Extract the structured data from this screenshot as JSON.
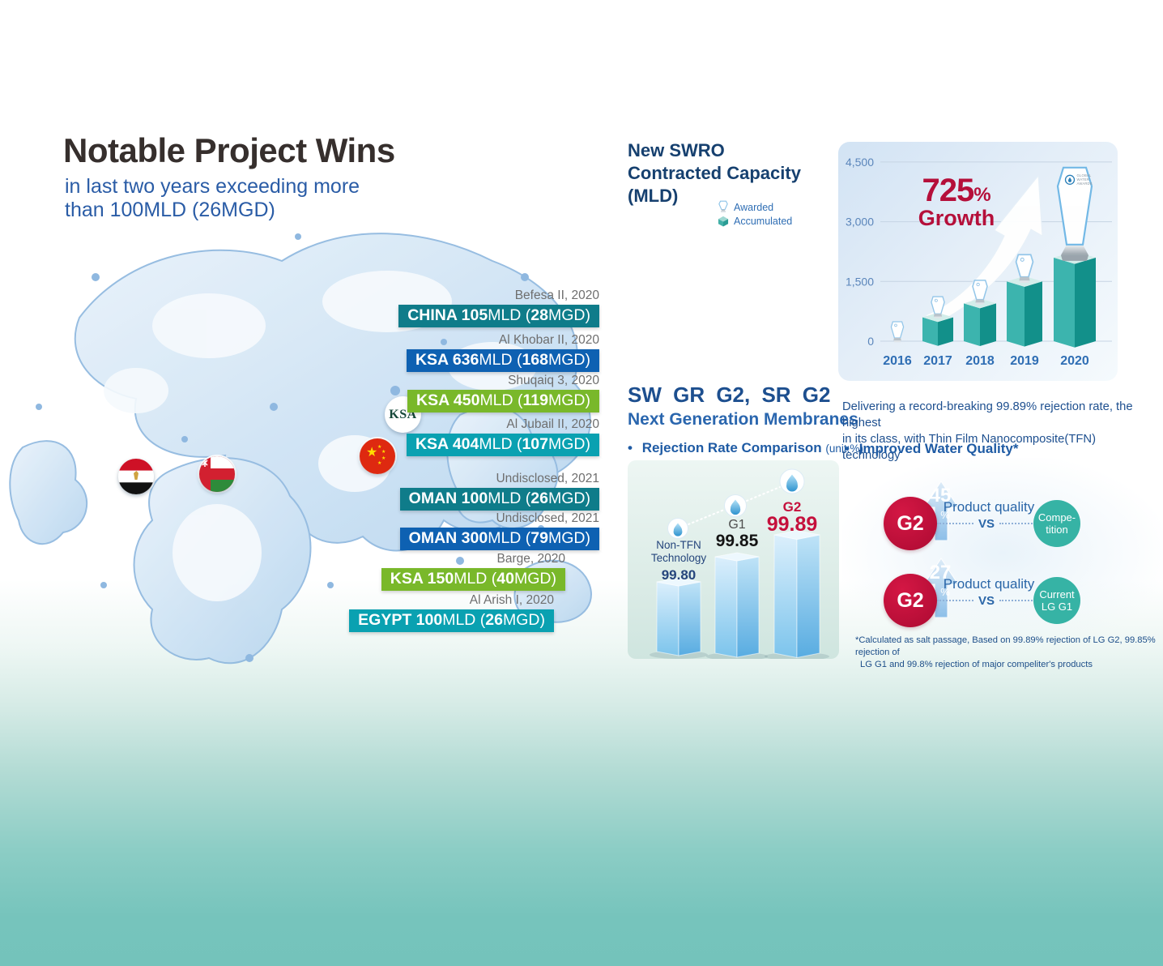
{
  "colors": {
    "teal_bar": "#0f7c8a",
    "blue_bar": "#0e61b2",
    "green_bar": "#79b82a",
    "cyan_bar": "#0aa1b1",
    "navy_heading": "#16406f",
    "blue_heading": "#2a66ae",
    "body_blue": "#1d4f8f",
    "red_accent": "#b50f3a",
    "crimson_circle": "#c5103c",
    "teal_circle": "#36b3a5",
    "chart_bar_teal": "#2fa8a2",
    "page_bottom_teal": "#74c3bb"
  },
  "left": {
    "title": "Notable Project Wins",
    "subtitle_line1": "in last two years exceeding more",
    "subtitle_line2": "than 100MLD (26MGD)",
    "ksa_badge_label": "KSA",
    "projects": [
      {
        "date": "Befesa II, 2020",
        "strong_a": "CHINA 105",
        "plain_a": "MLD (",
        "strong_b": "28",
        "plain_b": "MGD)",
        "color": "#0f7c8a"
      },
      {
        "date": "Al Khobar II, 2020",
        "strong_a": "KSA 636",
        "plain_a": "MLD (",
        "strong_b": "168",
        "plain_b": "MGD)",
        "color": "#0e61b2"
      },
      {
        "date": "Shuqaiq 3, 2020",
        "strong_a": "KSA 450",
        "plain_a": "MLD (",
        "strong_b": "119",
        "plain_b": "MGD)",
        "color": "#79b82a"
      },
      {
        "date": "Al Jubail II, 2020",
        "strong_a": "KSA 404",
        "plain_a": "MLD (",
        "strong_b": "107",
        "plain_b": "MGD)",
        "color": "#0aa1b1"
      },
      {
        "date": "Undisclosed, 2021",
        "strong_a": "OMAN 100",
        "plain_a": "MLD (",
        "strong_b": "26",
        "plain_b": "MGD)",
        "color": "#0f7c8a"
      },
      {
        "date": "Undisclosed, 2021",
        "strong_a": "OMAN 300",
        "plain_a": "MLD (",
        "strong_b": "79",
        "plain_b": "MGD)",
        "color": "#0e61b2"
      },
      {
        "date": "Barge, 2020",
        "strong_a": "KSA 150",
        "plain_a": "MLD (",
        "strong_b": "40",
        "plain_b": "MGD)",
        "color": "#79b82a"
      },
      {
        "date": "Al Arish I, 2020",
        "strong_a": "EGYPT 100",
        "plain_a": "MLD (",
        "strong_b": "26",
        "plain_b": "MGD)",
        "color": "#0aa1b1"
      }
    ]
  },
  "capacity": {
    "heading_line1": "New SWRO",
    "heading_line2": "Contracted Capacity",
    "heading_line3": "(MLD)",
    "legend_awarded": "Awarded",
    "legend_accumulated": "Accumulated",
    "growth_value": "725",
    "growth_unit": "%",
    "growth_label": "Growth",
    "award_lines": [
      "GLOBAL",
      "WATER",
      "AWARDS"
    ]
  },
  "membranes": {
    "heading": "SW GR G2, SR G2",
    "subheading": "Next Generation Membranes",
    "bullet_left": "Rejection Rate Comparison",
    "bullet_left_unit": "(unit:%)",
    "desc_line1": "Delivering a record-breaking 99.89% rejection rate, the highest",
    "desc_line2": "in its class, with Thin Film Nanocomposite(TFN) technology",
    "bullet_right": "Improved Water Quality*",
    "rejection_labels": {
      "bar1_line1": "Non-TFN",
      "bar1_line2": "Technology",
      "bar1_value": "99.80",
      "bar2_label": "G1",
      "bar2_value": "99.85",
      "bar3_label": "G2",
      "bar3_value": "99.89"
    },
    "quality_rows": [
      {
        "circle": "G2",
        "percent": "45",
        "percent_sign": "%",
        "quality_label": "Product quality",
        "vs": "VS",
        "opponent_line1": "Compe-",
        "opponent_line2": "tition"
      },
      {
        "circle": "G2",
        "percent": "27",
        "percent_sign": "%",
        "quality_label": "Product quality",
        "vs": "VS",
        "opponent_line1": "Current",
        "opponent_line2": "LG G1"
      }
    ],
    "footnote_line1": "*Calculated as salt passage, Based on 99.89% rejection of LG G2, 99.85% rejection of",
    "footnote_line2": "LG G1 and 99.8% rejection of major compeliter's products"
  },
  "chart_data": [
    {
      "type": "bar",
      "title": "New SWRO Contracted Capacity (MLD)",
      "categories": [
        "2016",
        "2017",
        "2018",
        "2019",
        "2020"
      ],
      "values": [
        0,
        600,
        950,
        1500,
        2100
      ],
      "ylim": [
        0,
        4500
      ],
      "ytick_values": [
        4500,
        3000,
        1500,
        0
      ],
      "ytick_labels": [
        "4,500",
        "3,000",
        "1,500",
        "0"
      ],
      "legend": [
        "Awarded",
        "Accumulated"
      ],
      "annotation": "725% Growth",
      "note": "values estimated from bar heights; a Global Water Awards trophy marks each year, largest on 2020"
    },
    {
      "type": "bar",
      "title": "Rejection Rate Comparison (unit:%)",
      "categories": [
        "Non-TFN Technology",
        "G1",
        "G2"
      ],
      "values": [
        99.8,
        99.85,
        99.89
      ]
    },
    {
      "type": "bar",
      "title": "Improved Water Quality (product quality improvement, %)",
      "categories": [
        "G2 vs Competition",
        "G2 vs Current LG G1"
      ],
      "values": [
        45,
        27
      ]
    }
  ]
}
